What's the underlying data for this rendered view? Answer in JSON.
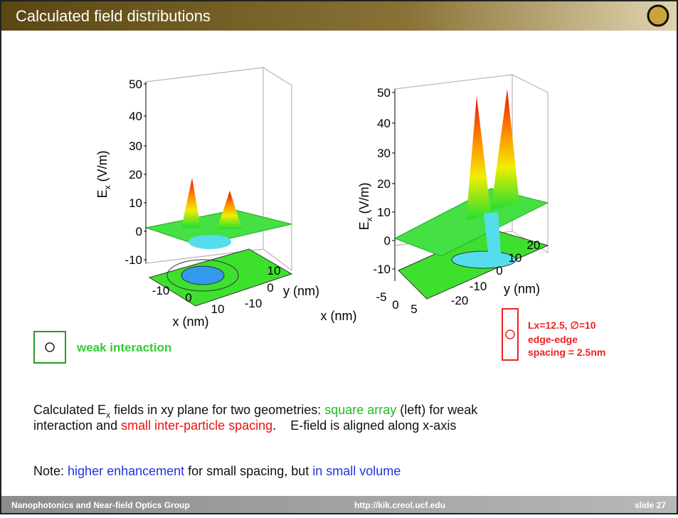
{
  "header": {
    "title": "Calculated field distributions"
  },
  "plots": [
    {
      "z_label": {
        "main": "E",
        "sub": "x",
        "unit": " (V/m)"
      },
      "zticks": [
        "50",
        "40",
        "30",
        "20",
        "10",
        "0",
        "-10"
      ],
      "xticks": [
        "-10",
        "0",
        "10"
      ],
      "x_label": "x (nm)",
      "yticks": [
        "10",
        "0",
        "-10"
      ],
      "y_label": "y (nm)"
    },
    {
      "z_label": {
        "main": "E",
        "sub": "x",
        "unit": " (V/m)"
      },
      "zticks": [
        "50",
        "40",
        "30",
        "20",
        "10",
        "0",
        "-10"
      ],
      "xticks": [
        "-5",
        "0",
        "5"
      ],
      "x_label": "x (nm)",
      "yticks": [
        "20",
        "10",
        "0",
        "-10",
        "-20"
      ],
      "y_label": "y (nm)"
    }
  ],
  "legends": {
    "left": "weak interaction",
    "right": [
      "Lx=12.5, ∅=10",
      "edge-edge",
      "spacing = 2.5nm"
    ]
  },
  "body": {
    "line1": [
      "Calculated E",
      "x",
      " fields in xy plane for two geometries: ",
      "square array",
      " (left) for weak"
    ],
    "line2": [
      "interaction and ",
      "small inter-particle spacing",
      ".    E-field is aligned along x-axis"
    ],
    "note": [
      "Note: ",
      "higher enhancement",
      " for small spacing, but ",
      "in small volume"
    ]
  },
  "footer": {
    "group": "Nanophotonics and Near-field Optics Group",
    "url": "http://kik.creol.ucf.edu",
    "slide": "slide 27"
  }
}
